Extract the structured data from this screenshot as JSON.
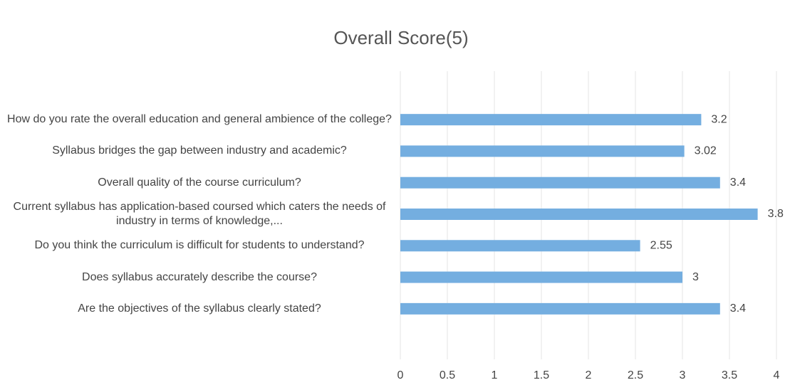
{
  "chart_data": {
    "type": "bar",
    "orientation": "horizontal",
    "title": "Overall Score(5)",
    "categories": [
      "How do you rate the overall education and general ambience of the college?",
      "Syllabus bridges the gap between industry and academic?",
      "Overall quality of the course curriculum?",
      "Current syllabus has application-based coursed which caters the needs of industry in terms of knowledge,...",
      "Do you think the curriculum is difficult for students to understand?",
      "Does syllabus accurately describe the course?",
      "Are the objectives of the syllabus clearly stated?"
    ],
    "values": [
      3.2,
      3.02,
      3.4,
      3.8,
      2.55,
      3,
      3.4
    ],
    "color": "#74aee0",
    "xlim": [
      0,
      4
    ],
    "xticks": [
      0,
      0.5,
      1,
      1.5,
      2,
      2.5,
      3,
      3.5,
      4
    ],
    "grid": true
  }
}
